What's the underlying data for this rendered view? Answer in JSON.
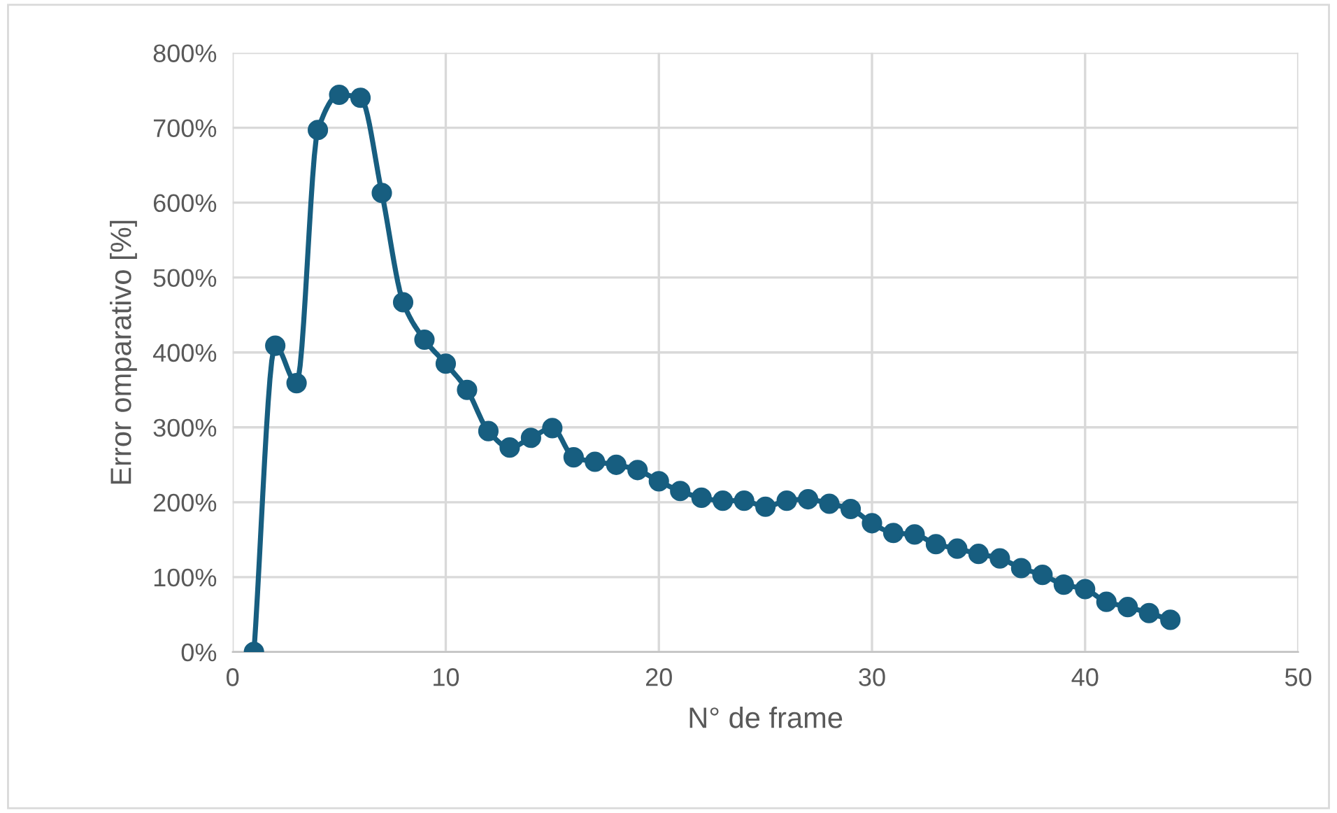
{
  "chart_data": {
    "type": "line",
    "xlabel": "N° de frame",
    "ylabel": "Error omparativo [%]",
    "x": [
      1,
      2,
      3,
      4,
      5,
      6,
      7,
      8,
      9,
      10,
      11,
      12,
      13,
      14,
      15,
      16,
      17,
      18,
      19,
      20,
      21,
      22,
      23,
      24,
      25,
      26,
      27,
      28,
      29,
      30,
      31,
      32,
      33,
      34,
      35,
      36,
      37,
      38,
      39,
      40,
      41,
      42,
      43,
      44
    ],
    "series": [
      {
        "color": "#175e80",
        "values": [
          0,
          409,
          359,
          697,
          744,
          740,
          613,
          467,
          417,
          385,
          350,
          295,
          273,
          286,
          299,
          260,
          254,
          250,
          243,
          228,
          215,
          206,
          202,
          202,
          194,
          202,
          204,
          198,
          191,
          172,
          159,
          157,
          144,
          138,
          131,
          125,
          112,
          103,
          90,
          84,
          67,
          60,
          52,
          43
        ]
      }
    ],
    "xlim": [
      0,
      50
    ],
    "xticks": [
      0,
      10,
      20,
      30,
      40,
      50
    ],
    "ylim": [
      0,
      800
    ],
    "yticks": [
      {
        "value": 0,
        "label": "0%"
      },
      {
        "value": 100,
        "label": "100%"
      },
      {
        "value": 200,
        "label": "200%"
      },
      {
        "value": 300,
        "label": "300%"
      },
      {
        "value": 400,
        "label": "400%"
      },
      {
        "value": 500,
        "label": "500%"
      },
      {
        "value": 600,
        "label": "600%"
      },
      {
        "value": 700,
        "label": "700%"
      },
      {
        "value": 800,
        "label": "800%"
      }
    ],
    "grid": true,
    "legend": false,
    "marker": "circle",
    "line_style": "solid"
  }
}
